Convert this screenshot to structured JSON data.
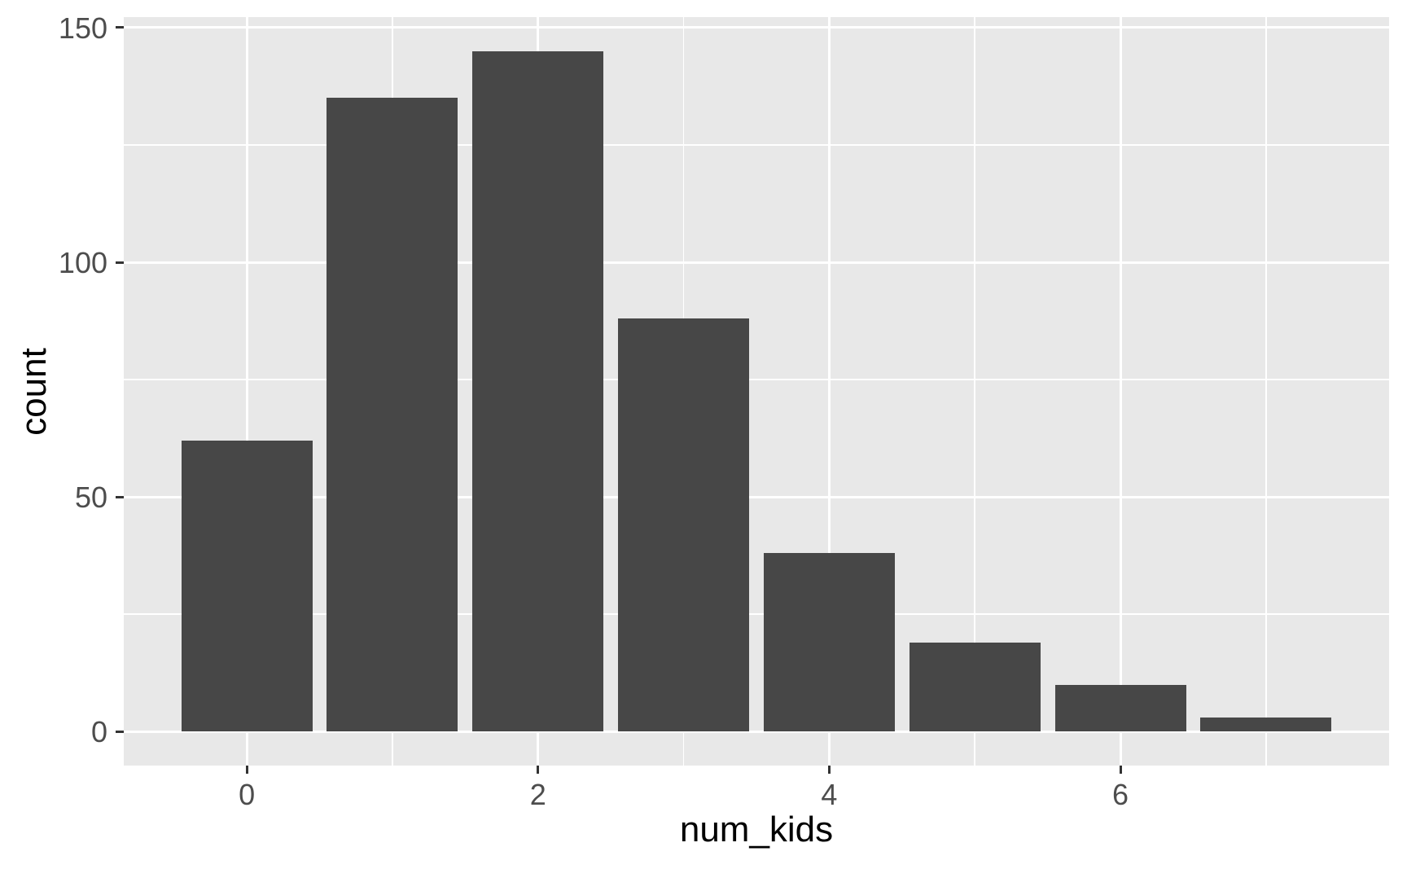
{
  "chart_data": {
    "type": "bar",
    "title": "",
    "xlabel": "num_kids",
    "ylabel": "count",
    "categories": [
      0,
      1,
      2,
      3,
      4,
      5,
      6,
      7
    ],
    "values": [
      62,
      135,
      145,
      88,
      38,
      19,
      10,
      3
    ],
    "bar_width": 0.9,
    "xlim": [
      -0.845,
      7.845
    ],
    "ylim": [
      -7.25,
      152.25
    ],
    "x_major_ticks": [
      0,
      2,
      4,
      6
    ],
    "y_major_ticks": [
      0,
      50,
      100,
      150
    ],
    "x_minor_gridlines": [
      1,
      3,
      5,
      7
    ],
    "y_minor_gridlines": [
      25,
      75,
      125
    ],
    "grid": "major-and-minor-white-on-grey-panel",
    "legend": "none",
    "theme": "ggplot2-grey",
    "colors": {
      "bar_fill": "#474747",
      "panel_bg": "#E8E8E8",
      "gridline": "#FFFFFF",
      "tick_label": "#4D4D4D",
      "axis_title": "#000000",
      "tick_mark": "#333333",
      "outer_bg": "#FFFFFF"
    }
  }
}
